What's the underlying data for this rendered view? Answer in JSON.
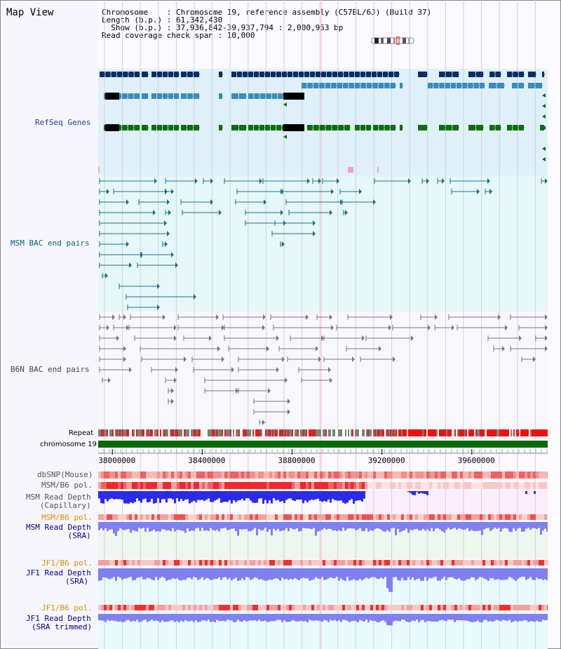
{
  "title": "Map View",
  "info": {
    "chromosome_line": "Chromosome    : Chromosome 19, reference assembly (C57BL/6J) (Build 37)",
    "length_line": "Length (b.p.) : 61,342,430",
    "show_line": "  Show (b.p.) : 37,936,842-39,937,794 : 2,000,953 bp",
    "coverage_line": "Read coverage check span : 10,000"
  },
  "tracks": {
    "refseq": "RefSeq Genes",
    "msm_bac": "MSM BAC end pairs",
    "b6n_bac": "B6N BAC end pairs",
    "repeat": "Repeat",
    "chromosome": "chromosome 19",
    "dbsnp": "dbSNP(Mouse)",
    "msm_b6_pol": "MSM/B6 pol.",
    "msm_rd_cap_1": "MSM Read Depth",
    "msm_rd_cap_2": "(Capillary)",
    "msm_b6_pol2": "MSM/B6 pol.",
    "msm_rd_sra_1": "MSM Read Depth",
    "msm_rd_sra_2": "(SRA)",
    "jf1_b6_pol": "JF1/B6 pol.",
    "jf1_rd_sra_1": "JF1 Read Depth",
    "jf1_rd_sra_2": "(SRA)",
    "jf1_b6_pol2": "JF1/B6 pol.",
    "jf1_rd_trim_1": "JF1 Read Depth",
    "jf1_rd_trim_2": "(SRA trimmed)"
  },
  "axis": {
    "start_bp": 37936842,
    "end_bp": 39937794,
    "ticks": [
      "38000000",
      "38400000",
      "38800000",
      "39200000",
      "39600000"
    ],
    "tick_values": [
      38000000,
      38400000,
      38800000,
      39200000,
      39600000
    ]
  },
  "colors": {
    "refseq_bg": "#dff0f8",
    "refseq_navy": "#0a2e6a",
    "refseq_teal": "#3a8cbc",
    "refseq_green": "#0d6e0d",
    "msm_bg": "#e6f7f8",
    "msm_line": "#1a7088",
    "b6n_line": "#777777",
    "chromosome_bar": "#0a6a0a",
    "depth_blue": "#2a2ae8",
    "depth_lightblue": "#8080f0",
    "pol_red": "#f05050"
  }
}
